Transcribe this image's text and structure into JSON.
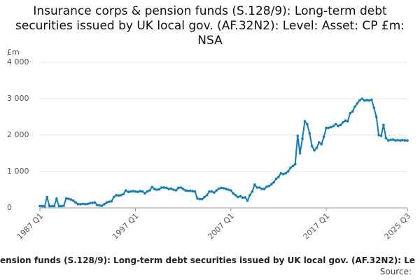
{
  "chart_data": {
    "type": "line",
    "title": "Insurance corps & pension funds (S.128/9): Long-term debt securities issued by UK local gov. (AF.32N2): Level: Asset: CP £m: NSA",
    "y_axis_label": "£m",
    "footer_title": "ension funds (S.128/9): Long-term debt securities issued by UK local gov. (AF.32N2): Le",
    "source": "Source:",
    "categories": [
      "1987 Q1",
      null,
      null,
      null,
      null,
      null,
      null,
      null,
      null,
      null,
      null,
      null,
      null,
      null,
      null,
      null,
      null,
      null,
      null,
      null,
      null,
      null,
      null,
      null,
      null,
      null,
      null,
      null,
      null,
      null,
      null,
      null,
      null,
      null,
      null,
      null,
      null,
      null,
      null,
      null,
      "1997 Q1",
      null,
      null,
      null,
      null,
      null,
      null,
      null,
      null,
      null,
      null,
      null,
      null,
      null,
      null,
      null,
      null,
      null,
      null,
      null,
      null,
      null,
      null,
      null,
      null,
      null,
      null,
      null,
      null,
      null,
      null,
      null,
      null,
      null,
      null,
      null,
      null,
      null,
      null,
      null,
      "2007 Q1",
      null,
      null,
      null,
      null,
      null,
      null,
      null,
      null,
      null,
      null,
      null,
      null,
      null,
      null,
      null,
      null,
      null,
      null,
      null,
      null,
      null,
      null,
      null,
      null,
      null,
      null,
      null,
      null,
      null,
      null,
      null,
      null,
      null,
      null,
      null,
      null,
      null,
      null,
      null,
      "2017 Q1",
      null,
      null,
      null,
      null,
      null,
      null,
      null,
      null,
      null,
      null,
      null,
      null,
      null,
      null,
      null,
      null,
      null,
      null,
      null,
      null,
      null,
      null,
      null,
      null,
      null,
      null,
      null,
      null,
      null,
      null,
      null,
      null,
      null,
      "2025 Q3"
    ],
    "series": [
      {
        "name": "Level",
        "color": "#0f7dc2",
        "values": [
          50,
          50,
          40,
          300,
          50,
          50,
          50,
          250,
          50,
          50,
          60,
          260,
          250,
          230,
          200,
          150,
          100,
          100,
          110,
          100,
          110,
          130,
          140,
          150,
          80,
          70,
          60,
          100,
          150,
          170,
          180,
          300,
          350,
          340,
          350,
          380,
          480,
          440,
          450,
          460,
          450,
          440,
          460,
          450,
          400,
          450,
          480,
          570,
          520,
          500,
          510,
          560,
          560,
          550,
          520,
          530,
          500,
          480,
          550,
          560,
          520,
          480,
          470,
          470,
          460,
          450,
          260,
          240,
          240,
          300,
          350,
          450,
          450,
          420,
          480,
          530,
          550,
          540,
          520,
          500,
          480,
          400,
          350,
          300,
          320,
          280,
          290,
          200,
          350,
          450,
          640,
          560,
          560,
          520,
          520,
          580,
          600,
          650,
          700,
          800,
          850,
          950,
          930,
          950,
          1000,
          1100,
          1150,
          1200,
          1980,
          1500,
          1900,
          2380,
          2300,
          2050,
          1700,
          1580,
          1650,
          1800,
          1750,
          1950,
          2200,
          2200,
          2220,
          2250,
          2300,
          2250,
          2280,
          2350,
          2400,
          2380,
          2600,
          2650,
          2780,
          2870,
          2950,
          3000,
          2950,
          2960,
          2950,
          2970,
          2750,
          2500,
          2000,
          1980,
          2280,
          1920,
          1850,
          1870,
          1880,
          1850,
          1860,
          1850,
          1860,
          1850,
          1850
        ]
      }
    ],
    "ylim": [
      0,
      4000
    ],
    "yticks": [
      0,
      {
        "value": 1000,
        "label": "1 000"
      },
      {
        "value": 2000,
        "label": "2 000"
      },
      {
        "value": 3000,
        "label": "3 000"
      },
      {
        "value": 4000,
        "label": "4 000"
      }
    ],
    "grid": true
  }
}
